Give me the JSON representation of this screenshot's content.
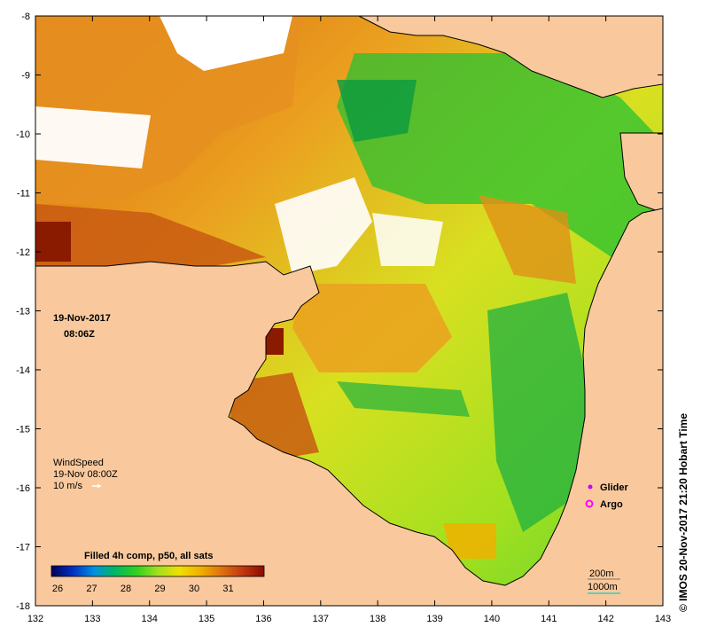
{
  "map": {
    "x_ticks": [
      "132",
      "133",
      "134",
      "135",
      "136",
      "137",
      "138",
      "139",
      "140",
      "141",
      "142",
      "143"
    ],
    "y_ticks": [
      "-8",
      "-9",
      "-10",
      "-11",
      "-12",
      "-13",
      "-14",
      "-15",
      "-16",
      "-17",
      "-18"
    ],
    "date_line1": "19-Nov-2017",
    "date_line2": "08:06Z",
    "wind_line1": "WindSpeed",
    "wind_line2": "19-Nov 08:00Z",
    "wind_scale": "10 m/s",
    "legend_glider": "Glider",
    "legend_argo": "Argo",
    "colorbar_title": "Filled 4h comp, p50, all sats",
    "colorbar_ticks": [
      "26",
      "27",
      "28",
      "29",
      "30",
      "31"
    ],
    "depth_200": "200m",
    "depth_1000": "1000m",
    "credit": "© IMOS 20-Nov-2017 21:20 Hobart Time",
    "colors": {
      "land": "#f9c99d",
      "glider": "#cc00ff",
      "argo": "#ff00ff",
      "colorbar": [
        "#00005a",
        "#0030c0",
        "#0090e0",
        "#00b860",
        "#30d020",
        "#a0e020",
        "#f0e000",
        "#f0b000",
        "#e07010",
        "#c03810",
        "#8a0a00"
      ]
    }
  }
}
